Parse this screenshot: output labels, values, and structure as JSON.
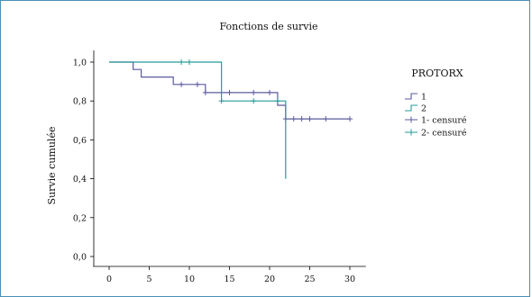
{
  "chart_data": {
    "type": "line",
    "chart_kind": "kaplan-meier step curve",
    "title": "Fonctions de survie",
    "ylabel": "Survie cumulée",
    "xlabel": "",
    "xlim": [
      -2,
      32
    ],
    "ylim": [
      -0.05,
      1.06
    ],
    "xticks": [
      0,
      5,
      10,
      15,
      20,
      25,
      30
    ],
    "yticks": [
      0.0,
      0.2,
      0.4,
      0.6,
      0.8,
      1.0
    ],
    "ytick_labels": [
      "0,0",
      "0,2",
      "0,4",
      "0,6",
      "0,8",
      "1,0"
    ],
    "grid": false,
    "legend_title": "PROTORX",
    "legend_position": "right",
    "series": [
      {
        "name": "1",
        "color": "#5b5b9e",
        "step_x": [
          0,
          3,
          3,
          4,
          4,
          8,
          8,
          12,
          12,
          21,
          21,
          22,
          22,
          30
        ],
        "step_y": [
          1.0,
          1.0,
          0.962,
          0.962,
          0.923,
          0.923,
          0.885,
          0.885,
          0.843,
          0.843,
          0.778,
          0.778,
          0.708,
          0.708
        ],
        "censored_x": [
          9,
          11,
          12,
          15,
          18,
          20,
          22,
          23,
          24,
          25,
          27,
          30
        ],
        "censored_y": [
          0.885,
          0.885,
          0.843,
          0.843,
          0.843,
          0.843,
          0.708,
          0.708,
          0.708,
          0.708,
          0.708,
          0.708
        ]
      },
      {
        "name": "2",
        "color": "#2a9a9a",
        "step_x": [
          0,
          14,
          14,
          22,
          22
        ],
        "step_y": [
          1.0,
          1.0,
          0.8,
          0.8,
          0.4
        ],
        "censored_x": [
          9,
          10,
          14,
          18,
          21
        ],
        "censored_y": [
          1.0,
          1.0,
          0.8,
          0.8,
          0.8
        ]
      }
    ],
    "legend": [
      {
        "label": "1",
        "marker": "step",
        "color": "#5b5b9e"
      },
      {
        "label": "2",
        "marker": "step",
        "color": "#2a9a9a"
      },
      {
        "label": "1- censuré",
        "marker": "plus",
        "color": "#5b5b9e"
      },
      {
        "label": "2- censuré",
        "marker": "plus",
        "color": "#2a9a9a"
      }
    ]
  }
}
